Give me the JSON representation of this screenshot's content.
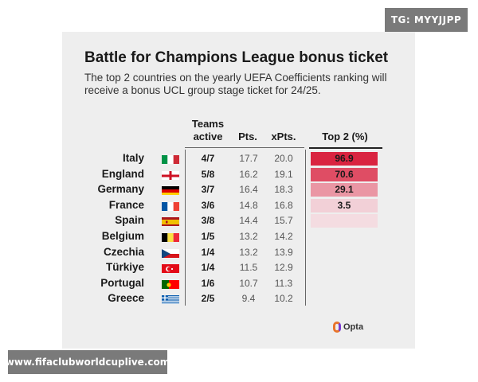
{
  "tg_badge": "TG: MYYJJPP",
  "website": "www.fifaclubworldcuplive.com",
  "title": "Battle for Champions League bonus ticket",
  "subtitle": "The top 2 countries on the yearly UEFA Coefficients ranking will receive a bonus UCL group stage ticket for 24/25.",
  "headers": {
    "teams": "Teams active",
    "pts": "Pts.",
    "xpts": "xPts.",
    "top2": "Top 2 (%)"
  },
  "rows": [
    {
      "country": "Italy",
      "flag": "italy-flag-icon",
      "teams": "4/7",
      "pts": "17.7",
      "xpts": "20.0",
      "top2": "96.9",
      "top2_value": 96.9
    },
    {
      "country": "England",
      "flag": "england-flag-icon",
      "teams": "5/8",
      "pts": "16.2",
      "xpts": "19.1",
      "top2": "70.6",
      "top2_value": 70.6
    },
    {
      "country": "Germany",
      "flag": "germany-flag-icon",
      "teams": "3/7",
      "pts": "16.4",
      "xpts": "18.3",
      "top2": "29.1",
      "top2_value": 29.1
    },
    {
      "country": "France",
      "flag": "france-flag-icon",
      "teams": "3/6",
      "pts": "14.8",
      "xpts": "16.8",
      "top2": "3.5",
      "top2_value": 3.5
    },
    {
      "country": "Spain",
      "flag": "spain-flag-icon",
      "teams": "3/8",
      "pts": "14.4",
      "xpts": "15.7",
      "top2": "",
      "top2_value": 0.1
    },
    {
      "country": "Belgium",
      "flag": "belgium-flag-icon",
      "teams": "1/5",
      "pts": "13.2",
      "xpts": "14.2",
      "top2": "",
      "top2_value": 0
    },
    {
      "country": "Czechia",
      "flag": "czechia-flag-icon",
      "teams": "1/4",
      "pts": "13.2",
      "xpts": "13.9",
      "top2": "",
      "top2_value": 0
    },
    {
      "country": "Türkiye",
      "flag": "turkiye-flag-icon",
      "teams": "1/4",
      "pts": "11.5",
      "xpts": "12.9",
      "top2": "",
      "top2_value": 0
    },
    {
      "country": "Portugal",
      "flag": "portugal-flag-icon",
      "teams": "1/6",
      "pts": "10.7",
      "xpts": "11.3",
      "top2": "",
      "top2_value": 0
    },
    {
      "country": "Greece",
      "flag": "greece-flag-icon",
      "teams": "2/5",
      "pts": "9.4",
      "xpts": "10.2",
      "top2": "",
      "top2_value": 0
    }
  ],
  "colors": {
    "bar_high": "#d81f3c",
    "bar_low": "#f4dde2",
    "card": "#eeeeee"
  },
  "opta_logo": "Opta"
}
